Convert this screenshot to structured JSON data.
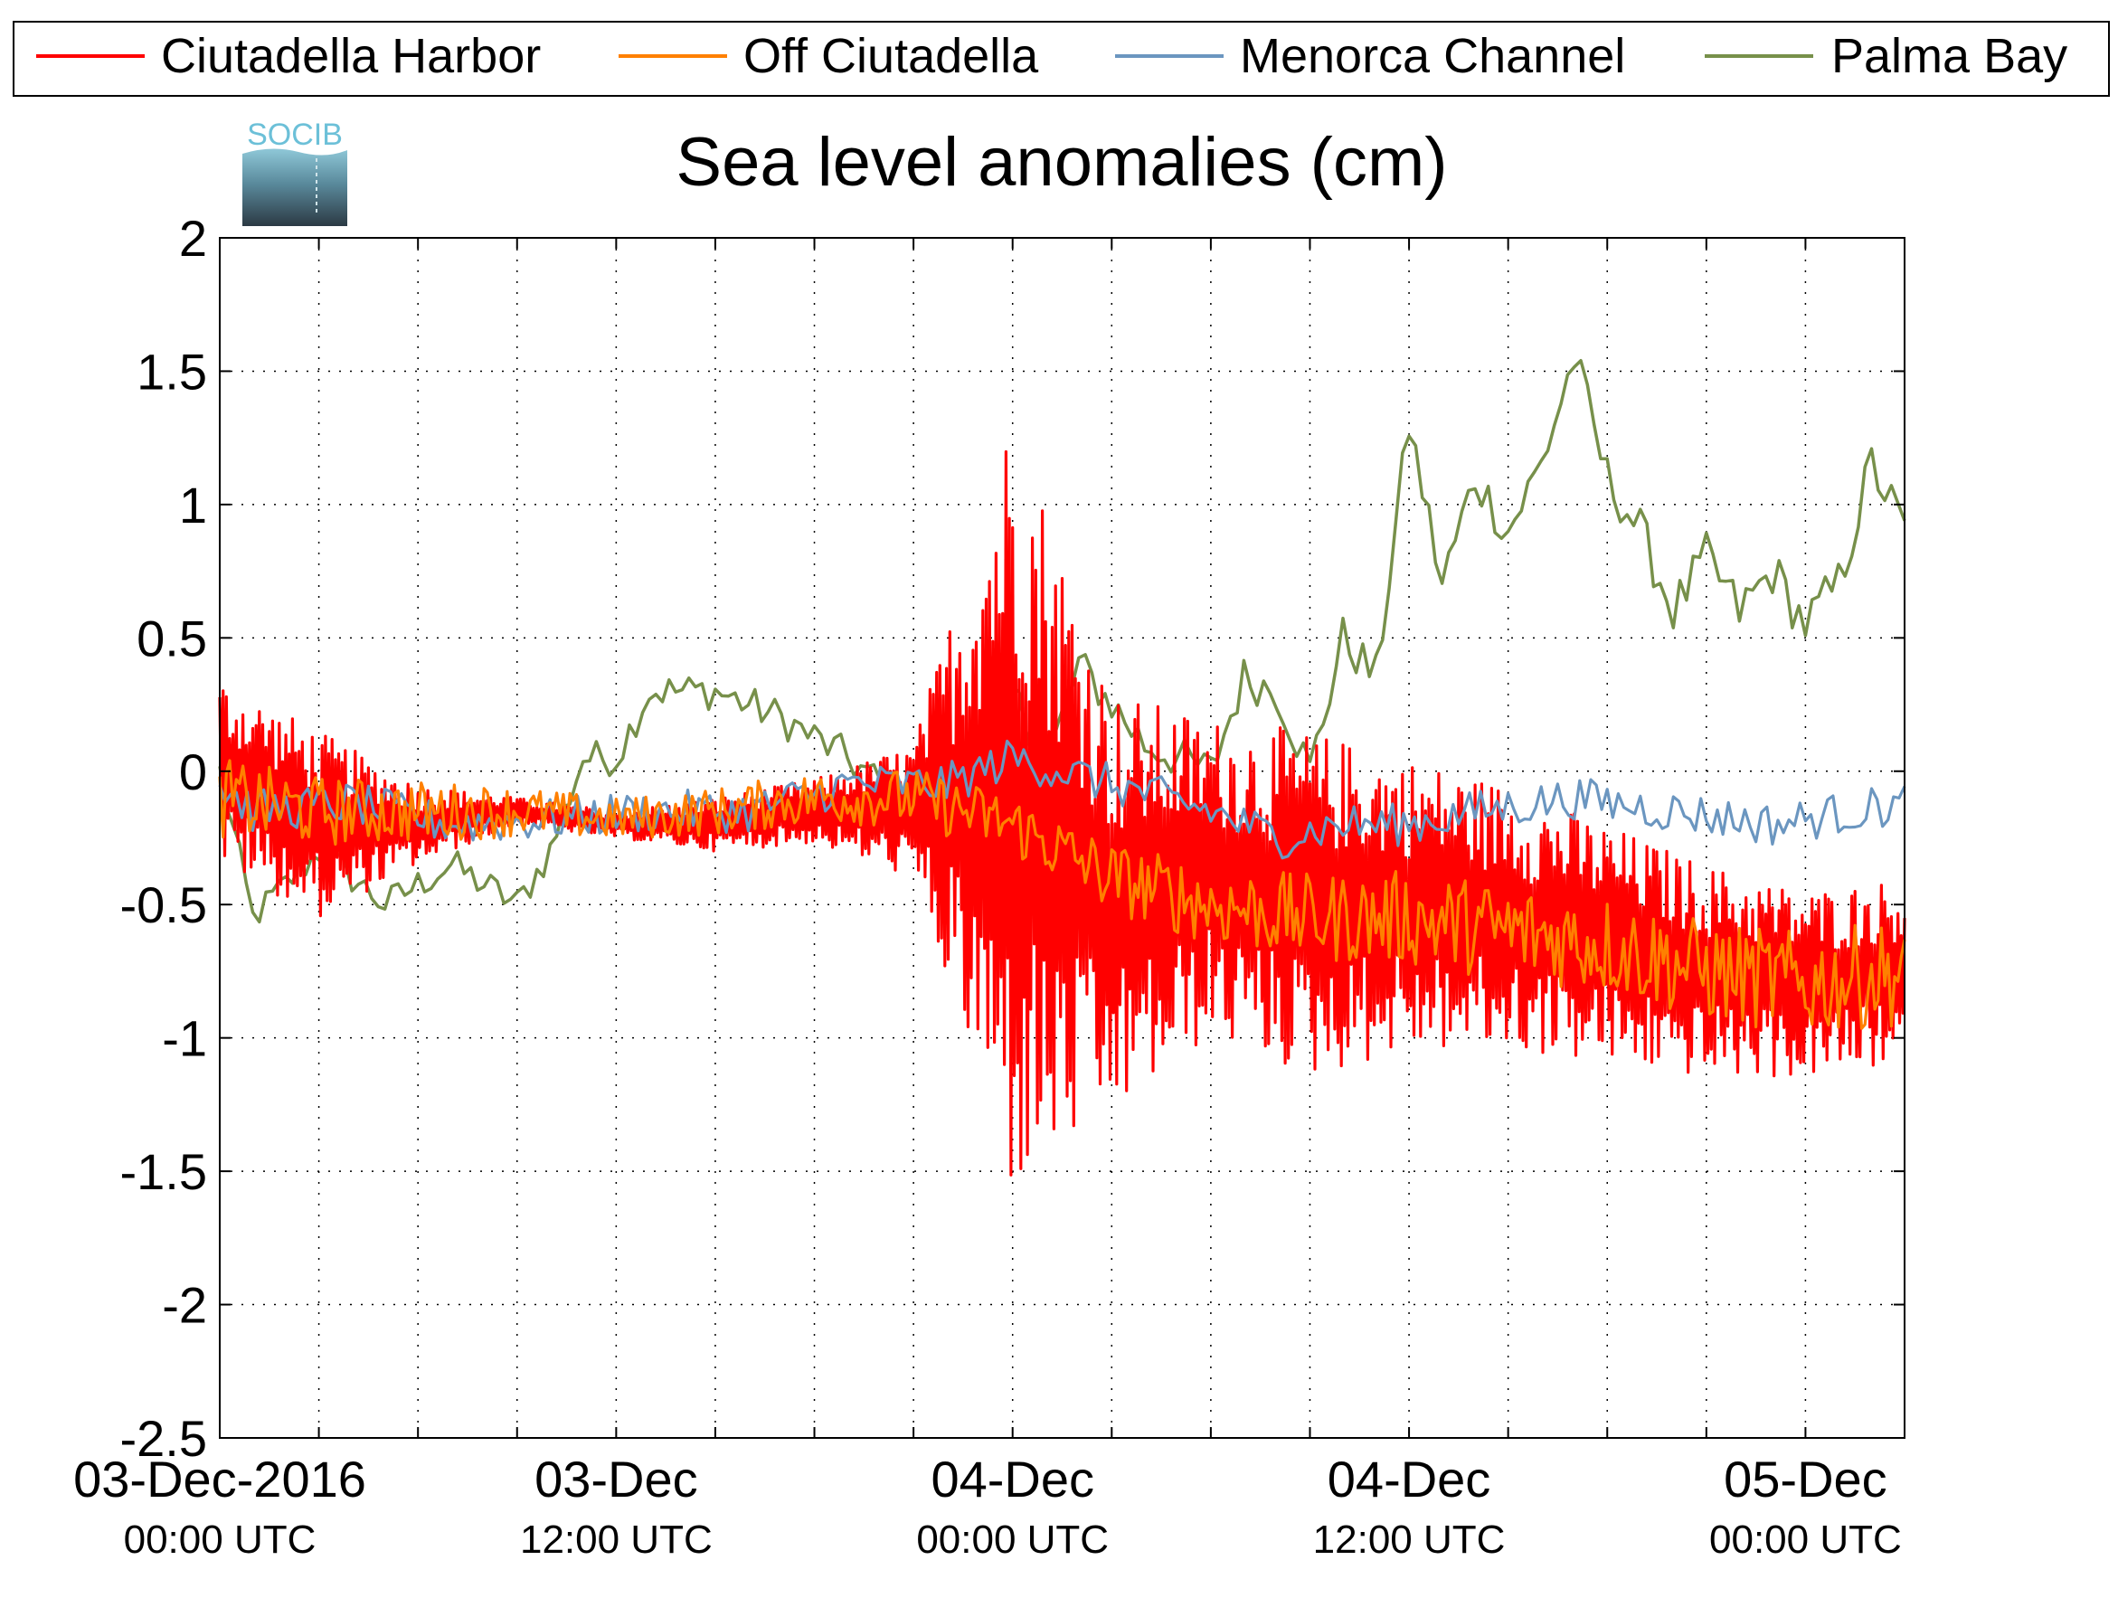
{
  "logo": {
    "text": "SOCIB"
  },
  "chart_data": {
    "type": "line",
    "title": "Sea level anomalies (cm)",
    "xlabel": "",
    "ylabel": "",
    "ylim": [
      -2.5,
      2
    ],
    "xlim": [
      "2016-12-03 00:00",
      "2016-12-05 03:00"
    ],
    "grid": true,
    "legend_position": "top",
    "y_ticks": [
      "2",
      "1.5",
      "1",
      "0.5",
      "0",
      "-0.5",
      "-1",
      "-1.5",
      "-2",
      "-2.5"
    ],
    "x_tick_labels": [
      {
        "date": "03-Dec-2016",
        "time": "00:00 UTC"
      },
      {
        "date": "03-Dec",
        "time": "12:00 UTC"
      },
      {
        "date": "04-Dec",
        "time": "00:00 UTC"
      },
      {
        "date": "04-Dec",
        "time": "12:00 UTC"
      },
      {
        "date": "05-Dec",
        "time": "00:00 UTC"
      }
    ],
    "series": [
      {
        "name": "Ciutadella Harbor",
        "color": "#ff0000",
        "points": [
          [
            "2016-12-03 00:00",
            0.0
          ],
          [
            "2016-12-03 03:00",
            -0.2
          ],
          [
            "2016-12-03 06:00",
            -0.2
          ],
          [
            "2016-12-03 09:00",
            -0.15
          ],
          [
            "2016-12-03 12:00",
            -0.2
          ],
          [
            "2016-12-03 15:00",
            -0.2
          ],
          [
            "2016-12-03 18:00",
            -0.15
          ],
          [
            "2016-12-03 21:00",
            -0.15
          ],
          [
            "2016-12-04 00:00",
            -0.1
          ],
          [
            "2016-12-04 03:00",
            -0.5
          ],
          [
            "2016-12-04 06:00",
            -0.4
          ],
          [
            "2016-12-04 09:00",
            -0.5
          ],
          [
            "2016-12-04 12:00",
            -0.5
          ],
          [
            "2016-12-04 15:00",
            -0.55
          ],
          [
            "2016-12-04 18:00",
            -0.65
          ],
          [
            "2016-12-04 21:00",
            -0.75
          ],
          [
            "2016-12-05 00:00",
            -0.8
          ],
          [
            "2016-12-05 03:00",
            -0.75
          ]
        ],
        "envelope": [
          [
            "2016-12-03 00:00",
            0.35
          ],
          [
            "2016-12-03 03:00",
            0.35
          ],
          [
            "2016-12-03 06:00",
            0.15
          ],
          [
            "2016-12-03 09:00",
            0.05
          ],
          [
            "2016-12-03 12:00",
            0.05
          ],
          [
            "2016-12-03 15:00",
            0.1
          ],
          [
            "2016-12-03 18:00",
            0.12
          ],
          [
            "2016-12-03 21:00",
            0.25
          ],
          [
            "2016-12-04 00:00",
            1.5
          ],
          [
            "2016-12-04 03:00",
            0.8
          ],
          [
            "2016-12-04 06:00",
            0.6
          ],
          [
            "2016-12-04 09:00",
            0.65
          ],
          [
            "2016-12-04 12:00",
            0.55
          ],
          [
            "2016-12-04 15:00",
            0.5
          ],
          [
            "2016-12-04 18:00",
            0.45
          ],
          [
            "2016-12-04 21:00",
            0.4
          ],
          [
            "2016-12-05 00:00",
            0.35
          ],
          [
            "2016-12-05 03:00",
            0.35
          ]
        ]
      },
      {
        "name": "Off Ciutadella",
        "color": "#ff8000",
        "points": [
          [
            "2016-12-03 00:00",
            -0.1
          ],
          [
            "2016-12-03 03:00",
            -0.15
          ],
          [
            "2016-12-03 06:00",
            -0.15
          ],
          [
            "2016-12-03 09:00",
            -0.15
          ],
          [
            "2016-12-03 12:00",
            -0.18
          ],
          [
            "2016-12-03 15:00",
            -0.15
          ],
          [
            "2016-12-03 18:00",
            -0.1
          ],
          [
            "2016-12-03 21:00",
            -0.1
          ],
          [
            "2016-12-04 00:00",
            -0.2
          ],
          [
            "2016-12-04 03:00",
            -0.4
          ],
          [
            "2016-12-04 06:00",
            -0.5
          ],
          [
            "2016-12-04 09:00",
            -0.55
          ],
          [
            "2016-12-04 12:00",
            -0.55
          ],
          [
            "2016-12-04 15:00",
            -0.6
          ],
          [
            "2016-12-04 18:00",
            -0.65
          ],
          [
            "2016-12-04 21:00",
            -0.75
          ],
          [
            "2016-12-05 00:00",
            -0.8
          ],
          [
            "2016-12-05 03:00",
            -0.75
          ]
        ],
        "envelope": [
          [
            "2016-12-03 00:00",
            0.15
          ],
          [
            "2016-12-03 12:00",
            0.08
          ],
          [
            "2016-12-04 00:00",
            0.12
          ],
          [
            "2016-12-04 12:00",
            0.18
          ],
          [
            "2016-12-05 03:00",
            0.2
          ]
        ]
      },
      {
        "name": "Menorca Channel",
        "color": "#6b96c0",
        "points": [
          [
            "2016-12-03 00:00",
            -0.05
          ],
          [
            "2016-12-03 01:00",
            -0.15
          ],
          [
            "2016-12-03 04:00",
            -0.12
          ],
          [
            "2016-12-03 07:00",
            -0.2
          ],
          [
            "2016-12-03 10:00",
            -0.18
          ],
          [
            "2016-12-03 13:00",
            -0.15
          ],
          [
            "2016-12-03 16:00",
            -0.15
          ],
          [
            "2016-12-03 19:00",
            -0.05
          ],
          [
            "2016-12-03 22:00",
            -0.05
          ],
          [
            "2016-12-04 00:00",
            0.05
          ],
          [
            "2016-12-04 03:00",
            -0.05
          ],
          [
            "2016-12-04 06:00",
            -0.15
          ],
          [
            "2016-12-04 08:00",
            -0.25
          ],
          [
            "2016-12-04 10:00",
            -0.2
          ],
          [
            "2016-12-04 12:00",
            -0.2
          ],
          [
            "2016-12-04 14:00",
            -0.15
          ],
          [
            "2016-12-04 17:00",
            -0.1
          ],
          [
            "2016-12-04 20:00",
            -0.15
          ],
          [
            "2016-12-04 23:00",
            -0.2
          ],
          [
            "2016-12-05 03:00",
            -0.12
          ]
        ],
        "envelope": [
          [
            "2016-12-03 00:00",
            0.08
          ],
          [
            "2016-12-05 03:00",
            0.08
          ]
        ]
      },
      {
        "name": "Palma Bay",
        "color": "#77904a",
        "points": [
          [
            "2016-12-03 00:00",
            0.0
          ],
          [
            "2016-12-03 01:00",
            -0.55
          ],
          [
            "2016-12-03 03:00",
            -0.3
          ],
          [
            "2016-12-03 05:00",
            -0.5
          ],
          [
            "2016-12-03 07:00",
            -0.35
          ],
          [
            "2016-12-03 09:00",
            -0.5
          ],
          [
            "2016-12-03 10:00",
            -0.3
          ],
          [
            "2016-12-03 11:00",
            0.05
          ],
          [
            "2016-12-03 12:00",
            0.05
          ],
          [
            "2016-12-03 13:00",
            0.3
          ],
          [
            "2016-12-03 15:00",
            0.3
          ],
          [
            "2016-12-03 17:00",
            0.2
          ],
          [
            "2016-12-03 19:00",
            0.05
          ],
          [
            "2016-12-03 21:00",
            -0.15
          ],
          [
            "2016-12-03 22:00",
            -0.3
          ],
          [
            "2016-12-03 23:00",
            -0.05
          ],
          [
            "2016-12-04 00:00",
            0.3
          ],
          [
            "2016-12-04 01:00",
            0.0
          ],
          [
            "2016-12-04 02:00",
            0.4
          ],
          [
            "2016-12-04 04:00",
            0.1
          ],
          [
            "2016-12-04 06:00",
            0.0
          ],
          [
            "2016-12-04 07:00",
            0.35
          ],
          [
            "2016-12-04 08:00",
            0.3
          ],
          [
            "2016-12-04 09:00",
            0.0
          ],
          [
            "2016-12-04 10:00",
            0.5
          ],
          [
            "2016-12-04 11:00",
            0.35
          ],
          [
            "2016-12-04 12:00",
            1.3
          ],
          [
            "2016-12-04 13:00",
            0.7
          ],
          [
            "2016-12-04 14:00",
            1.1
          ],
          [
            "2016-12-04 15:00",
            0.9
          ],
          [
            "2016-12-04 16:00",
            1.15
          ],
          [
            "2016-12-04 17:00",
            1.55
          ],
          [
            "2016-12-04 18:00",
            1.1
          ],
          [
            "2016-12-04 19:00",
            0.9
          ],
          [
            "2016-12-04 20:00",
            0.6
          ],
          [
            "2016-12-04 21:00",
            0.8
          ],
          [
            "2016-12-04 22:00",
            0.6
          ],
          [
            "2016-12-04 23:00",
            0.75
          ],
          [
            "2016-12-05 00:00",
            0.55
          ],
          [
            "2016-12-05 01:00",
            0.7
          ],
          [
            "2016-12-05 02:00",
            1.15
          ],
          [
            "2016-12-05 03:00",
            0.9
          ]
        ],
        "envelope": [
          [
            "2016-12-03 00:00",
            0.06
          ],
          [
            "2016-12-05 03:00",
            0.1
          ]
        ]
      }
    ]
  }
}
